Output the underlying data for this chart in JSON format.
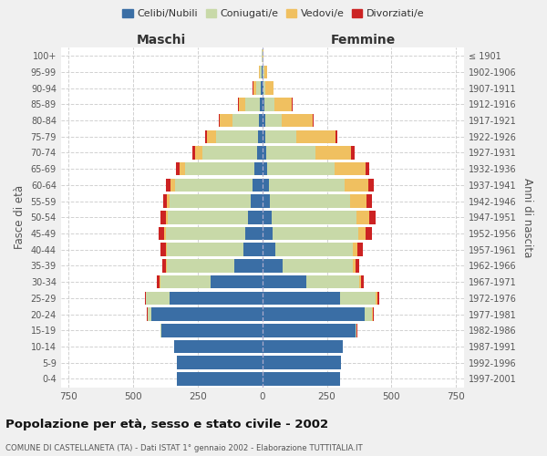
{
  "age_groups": [
    "0-4",
    "5-9",
    "10-14",
    "15-19",
    "20-24",
    "25-29",
    "30-34",
    "35-39",
    "40-44",
    "45-49",
    "50-54",
    "55-59",
    "60-64",
    "65-69",
    "70-74",
    "75-79",
    "80-84",
    "85-89",
    "90-94",
    "95-99",
    "100+"
  ],
  "birth_years": [
    "1997-2001",
    "1992-1996",
    "1987-1991",
    "1982-1986",
    "1977-1981",
    "1972-1976",
    "1967-1971",
    "1962-1966",
    "1957-1961",
    "1952-1956",
    "1947-1951",
    "1942-1946",
    "1937-1941",
    "1932-1936",
    "1927-1931",
    "1922-1926",
    "1917-1921",
    "1912-1916",
    "1907-1911",
    "1902-1906",
    "≤ 1901"
  ],
  "male_celibi": [
    330,
    330,
    340,
    390,
    430,
    360,
    200,
    110,
    75,
    65,
    55,
    45,
    38,
    30,
    22,
    18,
    15,
    10,
    5,
    2,
    0
  ],
  "male_coniugati": [
    0,
    0,
    0,
    5,
    15,
    90,
    195,
    260,
    295,
    310,
    310,
    315,
    300,
    270,
    210,
    160,
    100,
    55,
    18,
    8,
    2
  ],
  "male_vedovi": [
    0,
    0,
    0,
    0,
    0,
    1,
    2,
    3,
    5,
    6,
    8,
    10,
    18,
    22,
    30,
    35,
    50,
    25,
    12,
    4,
    0
  ],
  "male_divorziati": [
    0,
    0,
    0,
    1,
    3,
    5,
    10,
    14,
    18,
    20,
    20,
    15,
    18,
    12,
    10,
    8,
    5,
    5,
    2,
    0,
    0
  ],
  "female_celibi": [
    300,
    305,
    310,
    360,
    395,
    300,
    170,
    80,
    50,
    40,
    35,
    30,
    25,
    20,
    15,
    12,
    10,
    8,
    3,
    2,
    0
  ],
  "female_coniugati": [
    0,
    0,
    0,
    5,
    30,
    140,
    205,
    270,
    300,
    330,
    330,
    310,
    295,
    260,
    190,
    120,
    65,
    40,
    10,
    6,
    2
  ],
  "female_vedovi": [
    0,
    0,
    0,
    0,
    2,
    5,
    6,
    10,
    18,
    30,
    50,
    65,
    90,
    120,
    140,
    150,
    120,
    65,
    30,
    10,
    2
  ],
  "female_divorziati": [
    0,
    0,
    0,
    2,
    5,
    8,
    12,
    15,
    20,
    25,
    25,
    20,
    20,
    15,
    12,
    8,
    5,
    3,
    2,
    0,
    0
  ],
  "color_celibi": "#3a6ea5",
  "color_coniugati": "#c8d9a8",
  "color_vedovi": "#f0c060",
  "color_divorziati": "#cc2222",
  "title": "Popolazione per età, sesso e stato civile - 2002",
  "subtitle": "COMUNE DI CASTELLANETA (TA) - Dati ISTAT 1° gennaio 2002 - Elaborazione TUTTITALIA.IT",
  "xlabel_left": "Maschi",
  "xlabel_right": "Femmine",
  "ylabel_left": "Fasce di età",
  "ylabel_right": "Anni di nascita",
  "xlim": 780,
  "bg_color": "#f0f0f0",
  "plot_bg": "#ffffff",
  "grid_color": "#cccccc"
}
